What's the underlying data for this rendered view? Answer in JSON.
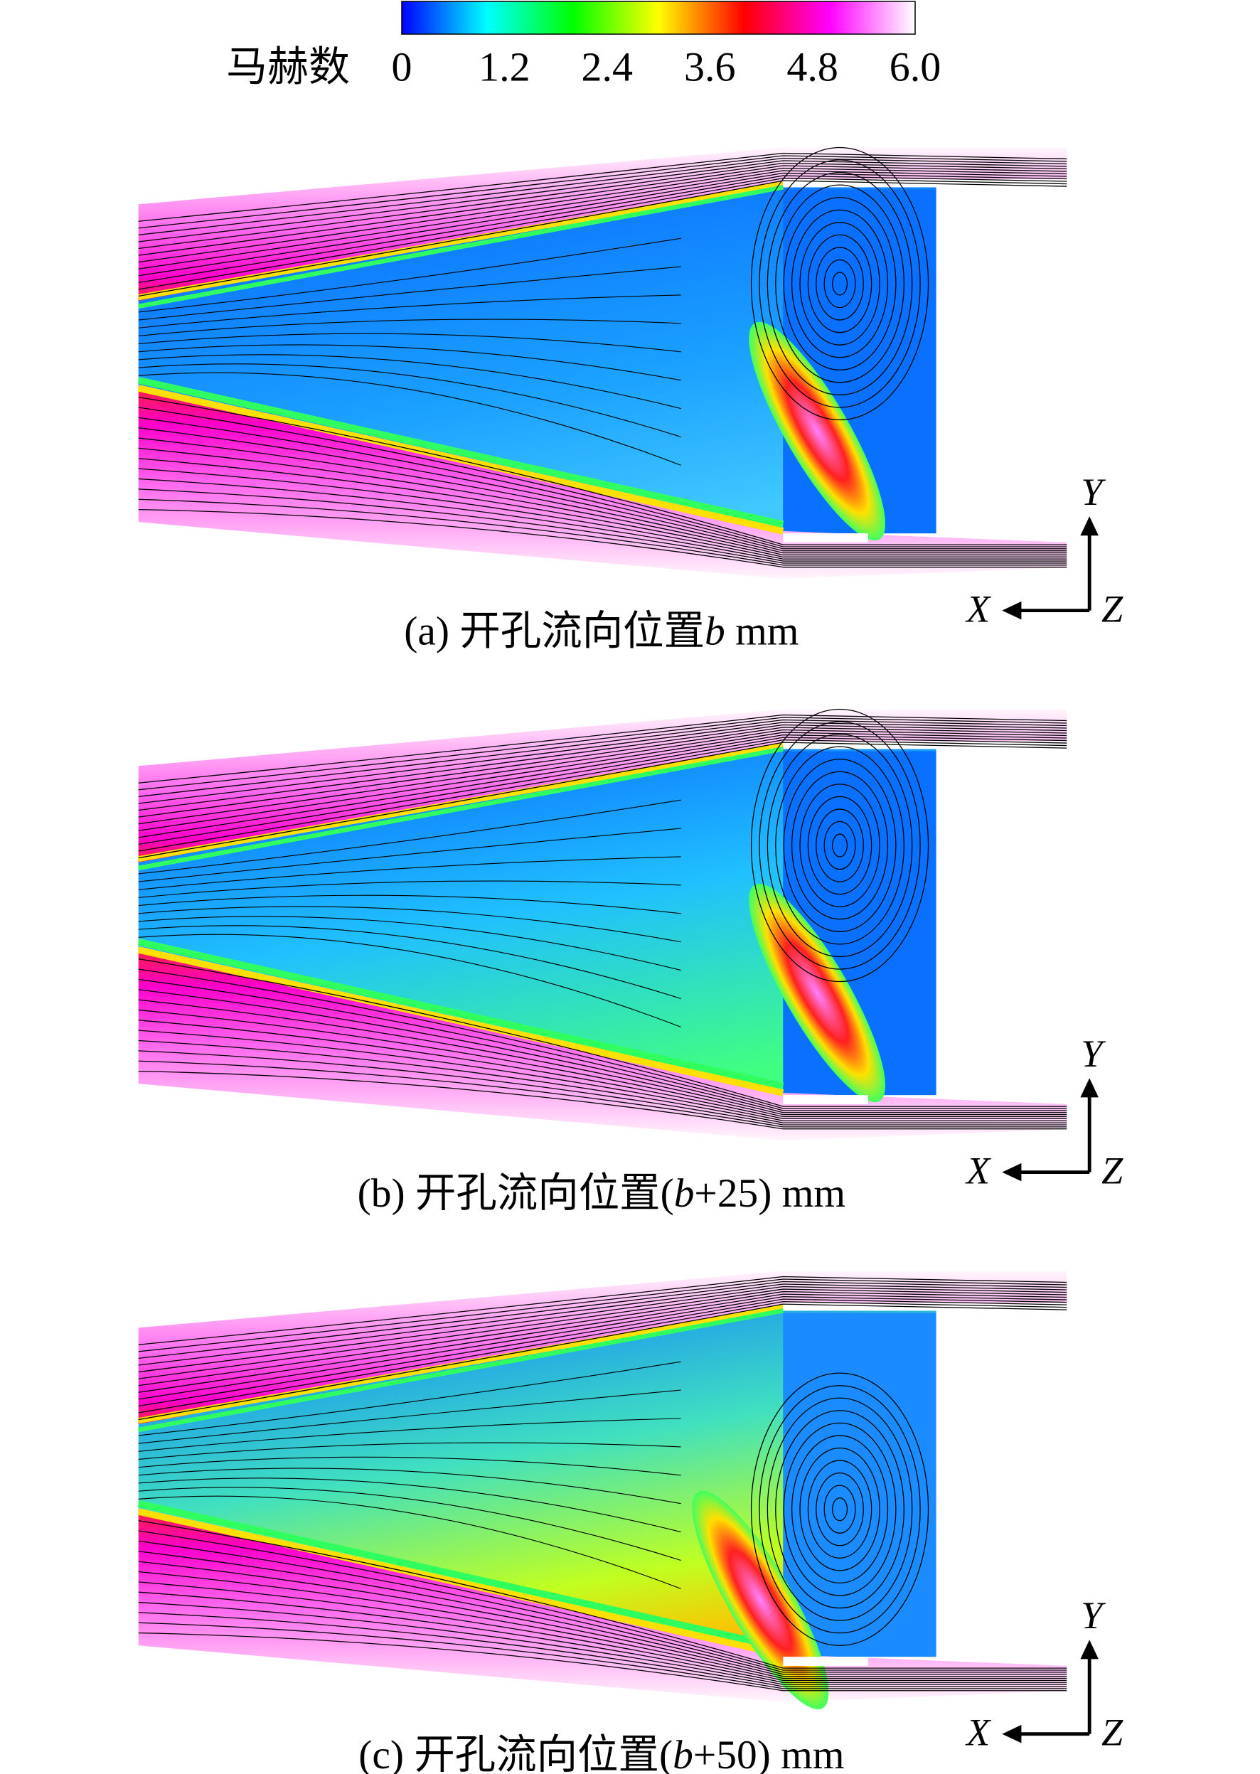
{
  "colorbar": {
    "title": "马赫数",
    "range": [
      0,
      6
    ],
    "ticks": [
      0,
      1.2,
      2.4,
      3.6,
      4.8,
      {
        "value": 6,
        "label": "6.0"
      }
    ],
    "colors": [
      "#0000ff",
      "#00ffff",
      "#00ff00",
      "#ffff00",
      "#ff0000",
      "#ff00ff",
      "#ffffff"
    ]
  },
  "panels": [
    {
      "caption": [
        {
          "text": "(a) 开孔流向位置",
          "italic": false
        },
        {
          "text": "b",
          "italic": true
        },
        {
          "text": " mm",
          "italic": false
        }
      ],
      "axes": {
        "y": "Y",
        "x": "X",
        "z": "Z"
      }
    },
    {
      "caption": [
        {
          "text": "(b) 开孔流向位置(",
          "italic": false
        },
        {
          "text": "b",
          "italic": true
        },
        {
          "text": "+25) mm",
          "italic": false
        }
      ],
      "axes": {
        "y": "Y",
        "x": "X",
        "z": "Z"
      }
    },
    {
      "caption": [
        {
          "text": "(c) 开孔流向位置(",
          "italic": false
        },
        {
          "text": "b",
          "italic": true
        },
        {
          "text": "+50) mm",
          "italic": false
        }
      ],
      "axes": {
        "y": "Y",
        "x": "X",
        "z": "Z"
      }
    }
  ]
}
